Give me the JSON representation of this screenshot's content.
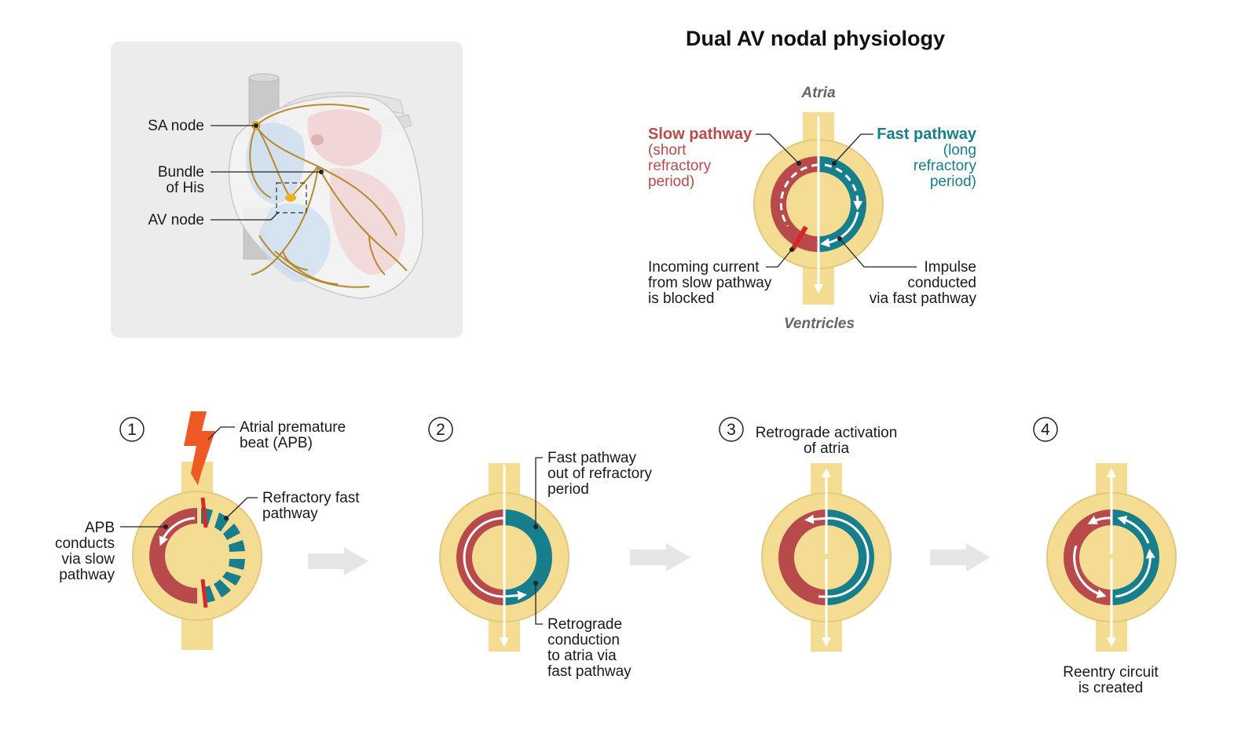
{
  "title": "Dual AV nodal physiology",
  "colors": {
    "slow_pathway": "#b94a4b",
    "fast_pathway": "#177f8c",
    "node_tissue": "#f5dc93",
    "node_outline": "#e3c77d",
    "conduction_system": "#b98a2c",
    "sa_av_node": "#f0b21c",
    "block_bar": "#d8262c",
    "apb_bolt": "#ef5a24",
    "panel_bg": "#ececec",
    "step_arrow": "#e6e6e6"
  },
  "heart_panel": {
    "labels": {
      "sa_node": "SA node",
      "bundle_his_1": "Bundle",
      "bundle_his_2": "of His",
      "av_node": "AV node"
    }
  },
  "main_diagram": {
    "atria": "Atria",
    "ventricles": "Ventricles",
    "slow_title": "Slow pathway",
    "slow_sub": [
      "(short",
      "refractory",
      "period)"
    ],
    "fast_title": "Fast pathway",
    "fast_sub": [
      "(long",
      "refractory",
      "period)"
    ],
    "blocked": [
      "Incoming current",
      "from slow pathway",
      "is blocked"
    ],
    "conducted": [
      "Impulse",
      "conducted",
      "via fast pathway"
    ]
  },
  "steps": [
    {
      "number": "1",
      "apb_label": [
        "Atrial premature",
        "beat (APB)"
      ],
      "refractory_label": [
        "Refractory fast",
        "pathway"
      ],
      "slow_label": [
        "APB",
        "conducts",
        "via slow",
        "pathway"
      ]
    },
    {
      "number": "2",
      "top_label": [
        "Fast pathway",
        "out of refractory",
        "period"
      ],
      "bottom_label": [
        "Retrograde",
        "conduction",
        "to atria via",
        "fast pathway"
      ]
    },
    {
      "number": "3",
      "top_label": [
        "Retrograde activation",
        "of atria"
      ]
    },
    {
      "number": "4",
      "bottom_label": [
        "Reentry circuit",
        "is created"
      ]
    }
  ]
}
